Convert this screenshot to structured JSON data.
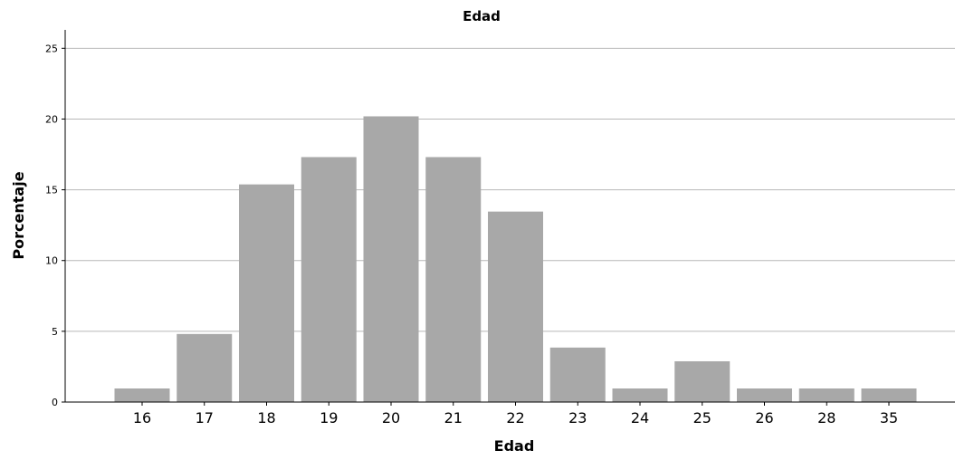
{
  "chart_data": {
    "type": "bar",
    "title": "Edad",
    "xlabel": "Edad",
    "ylabel": "Porcentaje",
    "categories": [
      "16",
      "17",
      "18",
      "19",
      "20",
      "21",
      "22",
      "23",
      "24",
      "25",
      "26",
      "28",
      "35"
    ],
    "values": [
      0.96,
      4.81,
      15.38,
      17.31,
      20.19,
      17.31,
      13.46,
      3.85,
      0.96,
      2.88,
      0.96,
      0.96,
      0.96
    ],
    "ylim": [
      0,
      26.3
    ],
    "yticks": [
      0,
      5,
      10,
      15,
      20,
      25
    ],
    "grid": true,
    "colors": {
      "bar": "#a8a8a8",
      "grid": "#b8b8b8",
      "axis": "#000000"
    }
  }
}
